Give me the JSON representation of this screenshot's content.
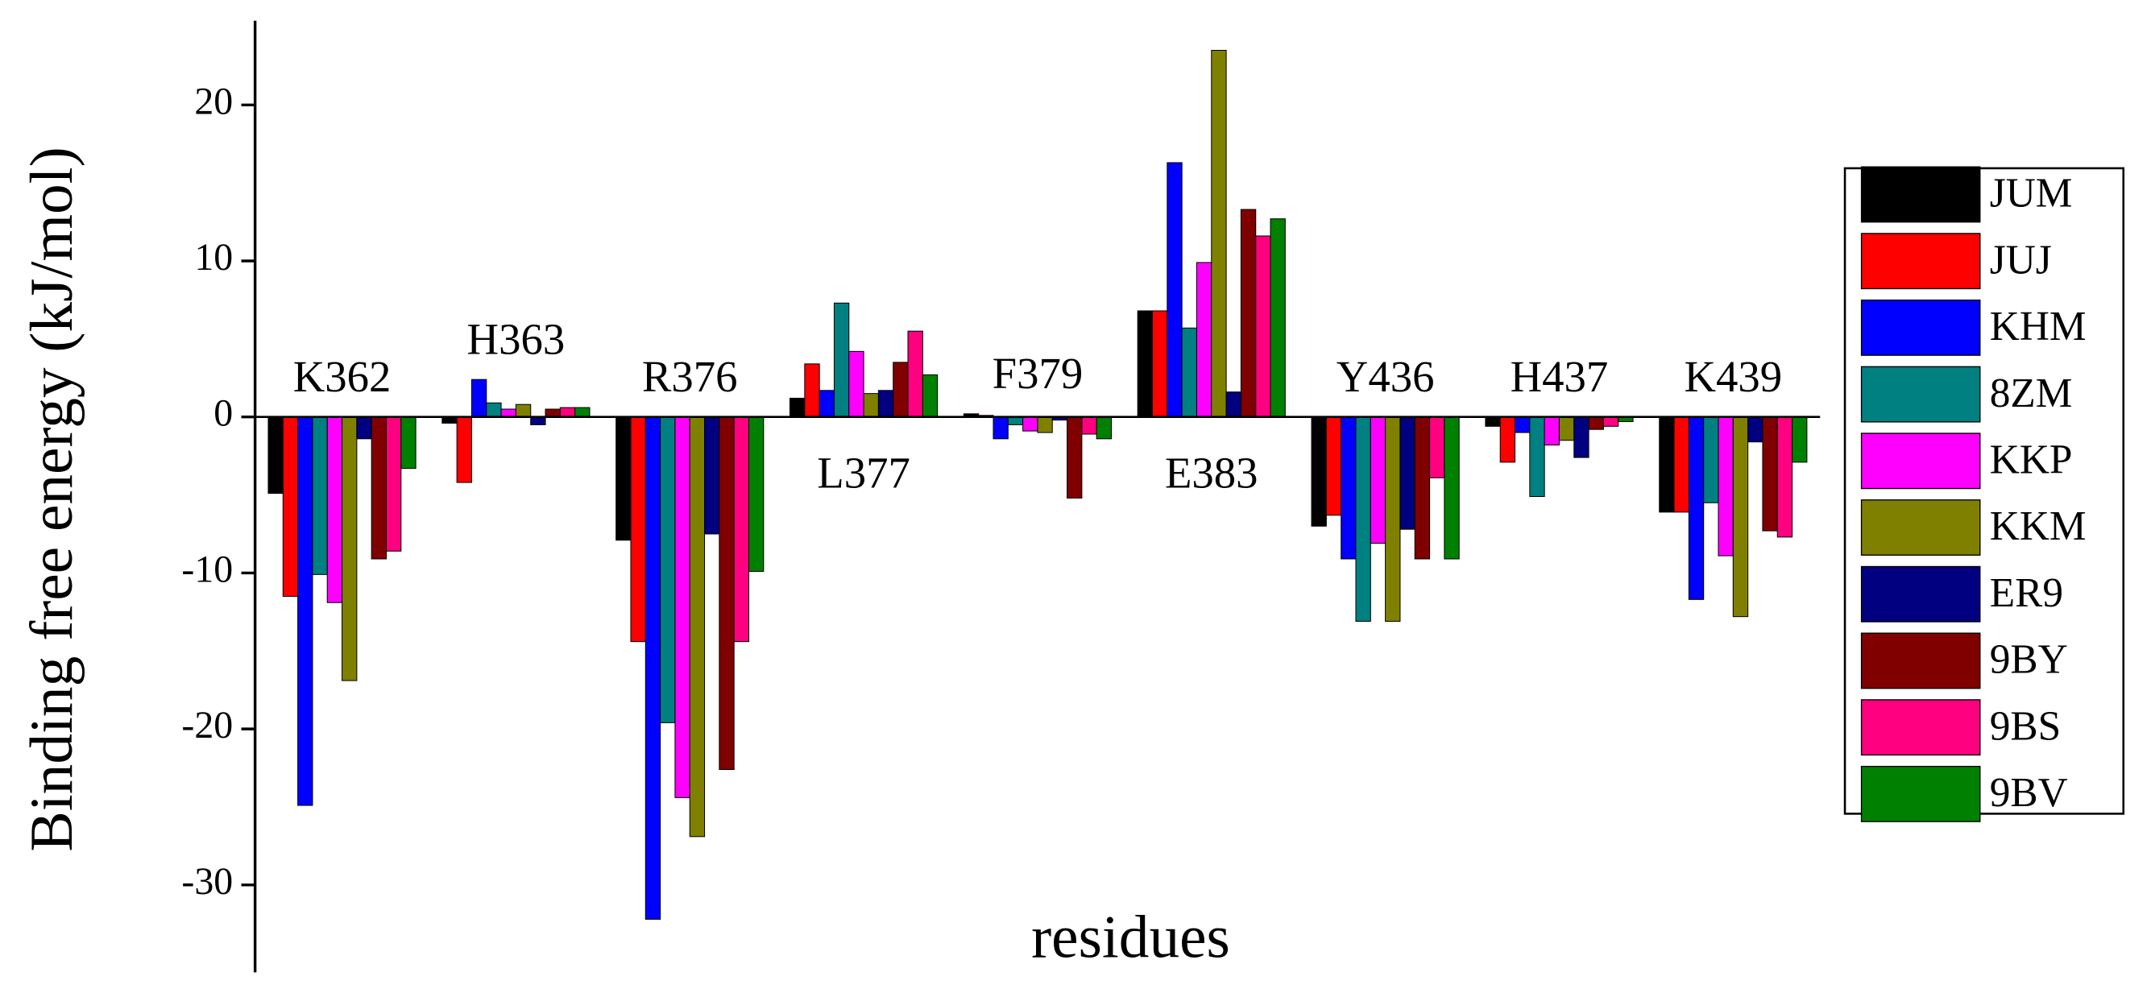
{
  "chart_data": {
    "type": "bar",
    "y_label": "Binding free energy (kJ/mol)",
    "x_label": "residues",
    "categories": [
      "K362",
      "H363",
      "R376",
      "L377",
      "F379",
      "E383",
      "Y436",
      "H437",
      "K439"
    ],
    "series": [
      {
        "name": "JUM",
        "color": "#000000",
        "values": [
          -4.9,
          -0.4,
          -7.9,
          1.2,
          0.2,
          6.8,
          -7.0,
          -0.6,
          -6.1
        ]
      },
      {
        "name": "JUJ",
        "color": "#ff0000",
        "values": [
          -11.5,
          -4.2,
          -14.4,
          3.4,
          0.1,
          6.8,
          -6.3,
          -2.9,
          -6.1
        ]
      },
      {
        "name": "KHM",
        "color": "#0000ff",
        "values": [
          -24.9,
          2.4,
          -32.2,
          1.7,
          -1.4,
          16.3,
          -9.1,
          -1.0,
          -11.7
        ]
      },
      {
        "name": "8ZM",
        "color": "#008080",
        "values": [
          -10.1,
          0.9,
          -19.6,
          7.3,
          -0.5,
          5.7,
          -13.1,
          -5.1,
          -5.5
        ]
      },
      {
        "name": "KKP",
        "color": "#ff00ff",
        "values": [
          -11.9,
          0.5,
          -24.4,
          4.2,
          -0.9,
          9.9,
          -8.1,
          -1.8,
          -8.9
        ]
      },
      {
        "name": "KKM",
        "color": "#808000",
        "values": [
          -16.9,
          0.8,
          -26.9,
          1.5,
          -1.0,
          23.5,
          -13.1,
          -1.5,
          -12.8
        ]
      },
      {
        "name": "ER9",
        "color": "#000080",
        "values": [
          -1.4,
          -0.5,
          -7.5,
          1.7,
          -0.2,
          1.6,
          -7.2,
          -2.6,
          -1.6
        ]
      },
      {
        "name": "9BY",
        "color": "#800000",
        "values": [
          -9.1,
          0.5,
          -22.6,
          3.5,
          -5.2,
          13.3,
          -9.1,
          -0.8,
          -7.3
        ]
      },
      {
        "name": "9BS",
        "color": "#ff0080",
        "values": [
          -8.6,
          0.6,
          -14.4,
          5.5,
          -1.1,
          11.6,
          -3.9,
          -0.6,
          -7.7
        ]
      },
      {
        "name": "9BV",
        "color": "#008000",
        "values": [
          -3.3,
          0.6,
          -9.9,
          2.7,
          -1.4,
          12.7,
          -9.1,
          -0.3,
          -2.9
        ]
      }
    ],
    "ylim": [
      -35.6,
      25.4
    ],
    "yticks": [
      -30,
      -20,
      -10,
      0,
      10,
      20
    ],
    "grid": false,
    "legend": "right"
  }
}
